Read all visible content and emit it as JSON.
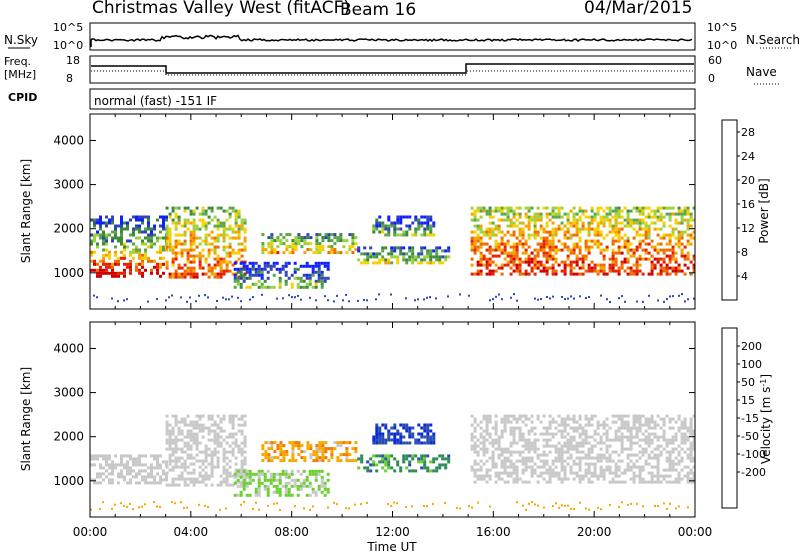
{
  "header": {
    "title": "Christmas Valley West (fitACF)",
    "beam": "Beam 16",
    "date": "04/Mar/2015"
  },
  "top_panels": {
    "nsky_label": "N.Sky",
    "nsky_ticks": [
      "10^5",
      "10^0"
    ],
    "nsearch_label": "N.Search",
    "nsearch_ticks": [
      "10^5",
      "10^0"
    ],
    "freq_label": "Freq.",
    "freq_unit": "[MHz]",
    "freq_ticks": [
      "18",
      "8"
    ],
    "nave_label": "Nave",
    "nave_ticks": [
      "60",
      "0"
    ],
    "cpid_label": "CPID",
    "cpid_value": "normal (fast) -151 IF"
  },
  "colors": {
    "power_scale": [
      "#0f1fff",
      "#2f46b4",
      "#3c8a3a",
      "#5aa64b",
      "#9ed23c",
      "#f6d100",
      "#f5a300",
      "#f06a00",
      "#e62200",
      "#d00000"
    ],
    "velocity_scale": [
      "#e60000",
      "#ee4400",
      "#f47a00",
      "#f7a800",
      "#c8c8c8",
      "#c8c8c8",
      "#6ccf30",
      "#2e8b57",
      "#2a4fb0",
      "#0a2bd6"
    ]
  },
  "chart_data": [
    {
      "type": "heatmap",
      "name": "power",
      "ylabel": "Slant Range [km]",
      "xlabel": "",
      "x_ticks": [
        "00:00",
        "04:00",
        "08:00",
        "12:00",
        "16:00",
        "20:00",
        "00:00"
      ],
      "xlim_hours": [
        0,
        24
      ],
      "ylim_km": [
        180,
        4600
      ],
      "y_ticks": [
        1000,
        2000,
        3000,
        4000
      ],
      "colorbar": {
        "label": "Power [dB]",
        "ticks": [
          4,
          8,
          12,
          16,
          20,
          24,
          28
        ],
        "range": [
          0,
          30
        ]
      },
      "regions": [
        {
          "t_start": 0.0,
          "t_end": 2.9,
          "r_low": 950,
          "r_high": 1500,
          "value": 24
        },
        {
          "t_start": 0.0,
          "t_end": 3.0,
          "r_low": 1500,
          "r_high": 2300,
          "value": 8
        },
        {
          "t_start": 3.0,
          "t_end": 6.2,
          "r_low": 900,
          "r_high": 2500,
          "value": 18
        },
        {
          "t_start": 6.8,
          "t_end": 10.5,
          "r_low": 1450,
          "r_high": 1900,
          "value": 14
        },
        {
          "t_start": 5.7,
          "t_end": 9.5,
          "r_low": 700,
          "r_high": 1250,
          "value": 6
        },
        {
          "t_start": 10.6,
          "t_end": 14.2,
          "r_low": 1200,
          "r_high": 1600,
          "value": 10
        },
        {
          "t_start": 11.2,
          "t_end": 13.6,
          "r_low": 1850,
          "r_high": 2300,
          "value": 7
        },
        {
          "t_start": 15.1,
          "t_end": 24.0,
          "r_low": 950,
          "r_high": 2500,
          "value": 20
        }
      ]
    },
    {
      "type": "heatmap",
      "name": "velocity",
      "ylabel": "Slant Range [km]",
      "xlabel": "Time UT",
      "x_ticks": [
        "00:00",
        "04:00",
        "08:00",
        "12:00",
        "16:00",
        "20:00",
        "00:00"
      ],
      "xlim_hours": [
        0,
        24
      ],
      "ylim_km": [
        180,
        4600
      ],
      "y_ticks": [
        1000,
        2000,
        3000,
        4000
      ],
      "colorbar": {
        "label": "Velocity",
        "unit": "[m s",
        "unit_exp": "-1",
        "ticks": [
          200,
          100,
          50,
          15,
          -15,
          -50,
          -100,
          -200
        ],
        "range": [
          -250,
          250
        ]
      },
      "regions": [
        {
          "t_start": 0.0,
          "t_end": 3.0,
          "r_low": 950,
          "r_high": 1600,
          "value": 0
        },
        {
          "t_start": 3.0,
          "t_end": 6.2,
          "r_low": 900,
          "r_high": 2500,
          "value": 0
        },
        {
          "t_start": 6.8,
          "t_end": 10.5,
          "r_low": 1450,
          "r_high": 1900,
          "value": -80
        },
        {
          "t_start": 5.7,
          "t_end": 9.5,
          "r_low": 700,
          "r_high": 1250,
          "value": 60
        },
        {
          "t_start": 10.6,
          "t_end": 14.2,
          "r_low": 1200,
          "r_high": 1600,
          "value": 120
        },
        {
          "t_start": 11.2,
          "t_end": 13.6,
          "r_low": 1850,
          "r_high": 2300,
          "value": 200
        },
        {
          "t_start": 15.1,
          "t_end": 24.0,
          "r_low": 950,
          "r_high": 2500,
          "value": 0
        }
      ]
    }
  ]
}
